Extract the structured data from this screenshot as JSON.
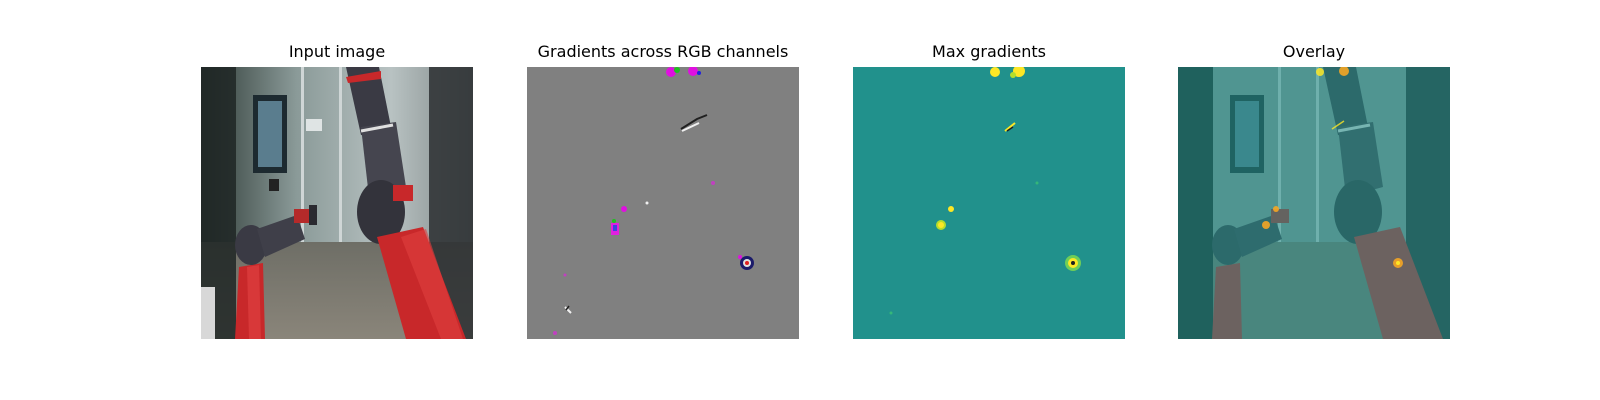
{
  "panels": [
    {
      "title": "Input image",
      "content": "robot-arm-photo"
    },
    {
      "title": "Gradients across RGB channels",
      "content": "rgb-gradient-map"
    },
    {
      "title": "Max gradients",
      "content": "max-gradient-map"
    },
    {
      "title": "Overlay",
      "content": "gradient-overlay-photo"
    }
  ],
  "colors": {
    "rgb_gradient_background": "#808080",
    "max_gradient_background": "#21918c",
    "high_gradient": "#fde725",
    "robot_red": "#c8282a",
    "robot_dark": "#3a3a44"
  }
}
